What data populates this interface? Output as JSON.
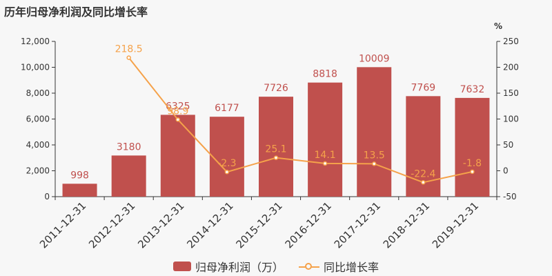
{
  "title": "历年归母净利润及同比增长率",
  "chart_data": {
    "type": "bar",
    "categories": [
      "2011-12-31",
      "2012-12-31",
      "2013-12-31",
      "2014-12-31",
      "2015-12-31",
      "2016-12-31",
      "2017-12-31",
      "2018-12-31",
      "2019-12-31"
    ],
    "series": [
      {
        "name": "归母净利润（万）",
        "type": "bar",
        "axis": "left",
        "values": [
          998,
          3180,
          6325,
          6177,
          7726,
          8818,
          10009,
          7769,
          7632
        ],
        "color": "#c0504d"
      },
      {
        "name": "同比增长率",
        "type": "line",
        "axis": "right",
        "values": [
          null,
          218.5,
          98.9,
          -2.3,
          25.1,
          14.1,
          13.5,
          -22.4,
          -1.8
        ],
        "color": "#f5a24a"
      }
    ],
    "left_axis": {
      "ylim": [
        0,
        12000
      ],
      "ticks": [
        0,
        2000,
        4000,
        6000,
        8000,
        10000,
        12000
      ],
      "tick_labels": [
        "0",
        "2,000",
        "4,000",
        "6,000",
        "8,000",
        "10,000",
        "12,000"
      ]
    },
    "right_axis": {
      "label": "%",
      "ylim": [
        -50,
        250
      ],
      "ticks": [
        -50,
        0,
        50,
        100,
        150,
        200,
        250
      ]
    },
    "bar_labels": [
      "998",
      "3180",
      "6325",
      "6177",
      "7726",
      "8818",
      "10009",
      "7769",
      "7632"
    ],
    "line_labels": [
      "",
      "218.5",
      "98.9",
      "-2.3",
      "25.1",
      "14.1",
      "13.5",
      "-22.4",
      "-1.8"
    ],
    "grid": false,
    "legend_position": "bottom"
  }
}
